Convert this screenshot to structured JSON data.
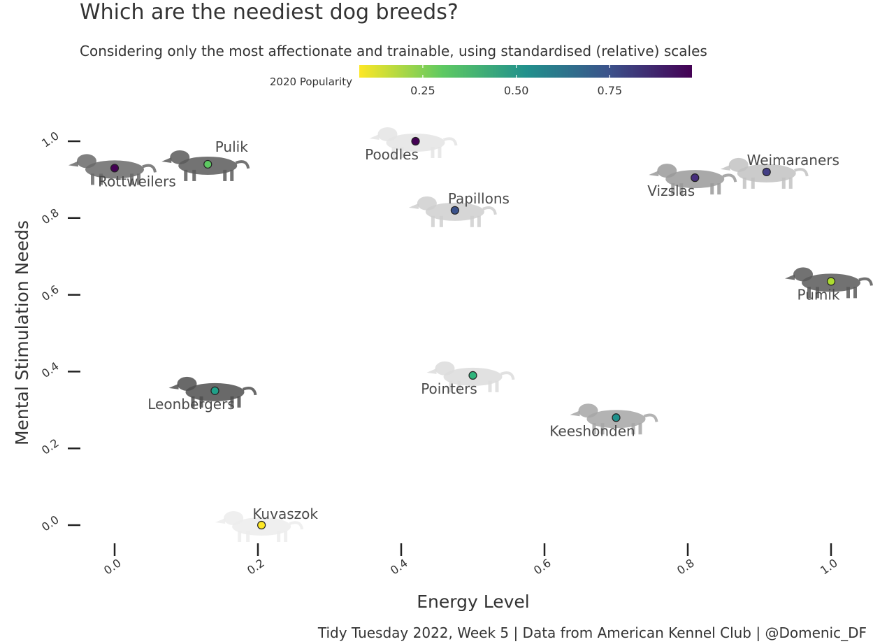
{
  "chart_data": {
    "type": "scatter",
    "title": "Which are the neediest dog breeds?",
    "subtitle": "Considering only the most affectionate and trainable, using standardised (relative) scales",
    "xlabel": "Energy Level",
    "ylabel": "Mental Stimulation Needs",
    "xlim": [
      -0.05,
      1.02
    ],
    "ylim": [
      -0.05,
      1.07
    ],
    "x_ticks": [
      "0.0",
      "0.2",
      "0.4",
      "0.6",
      "0.8",
      "1.0"
    ],
    "y_ticks": [
      "0.0",
      "0.2",
      "0.4",
      "0.6",
      "0.8",
      "1.0"
    ],
    "grid": false,
    "legend": {
      "title": "2020 Popularity",
      "placement": "top",
      "type": "colorbar",
      "range": [
        0.08,
        0.97
      ],
      "ticks": [
        "0.25",
        "0.50",
        "0.75"
      ],
      "palette": [
        "#fde725",
        "#5ec962",
        "#21918c",
        "#3b528b",
        "#440154"
      ]
    },
    "points": [
      {
        "breed": "Rottweilers",
        "x": 0.0,
        "y": 0.93,
        "popularity": 0.97,
        "color": "#440154"
      },
      {
        "breed": "Pulik",
        "x": 0.13,
        "y": 0.94,
        "popularity": 0.22,
        "color": "#5ec962"
      },
      {
        "breed": "Poodles",
        "x": 0.42,
        "y": 1.0,
        "popularity": 0.96,
        "color": "#440154"
      },
      {
        "breed": "Papillons",
        "x": 0.475,
        "y": 0.82,
        "popularity": 0.7,
        "color": "#3b528b"
      },
      {
        "breed": "Vizslas",
        "x": 0.81,
        "y": 0.905,
        "popularity": 0.8,
        "color": "#472f7d"
      },
      {
        "breed": "Weimaraners",
        "x": 0.91,
        "y": 0.92,
        "popularity": 0.83,
        "color": "#433e85"
      },
      {
        "breed": "Pumik",
        "x": 1.0,
        "y": 0.635,
        "popularity": 0.12,
        "color": "#addc30"
      },
      {
        "breed": "Pointers",
        "x": 0.5,
        "y": 0.39,
        "popularity": 0.4,
        "color": "#2fb47c"
      },
      {
        "breed": "Leonbergers",
        "x": 0.14,
        "y": 0.35,
        "popularity": 0.47,
        "color": "#1fa088"
      },
      {
        "breed": "Keeshonden",
        "x": 0.7,
        "y": 0.28,
        "popularity": 0.5,
        "color": "#21918c"
      },
      {
        "breed": "Kuvaszok",
        "x": 0.205,
        "y": 0.0,
        "popularity": 0.06,
        "color": "#fde725"
      }
    ],
    "caption": "Tidy Tuesday 2022, Week 5  |  Data from American Kennel Club  |  @Domenic_DF"
  }
}
